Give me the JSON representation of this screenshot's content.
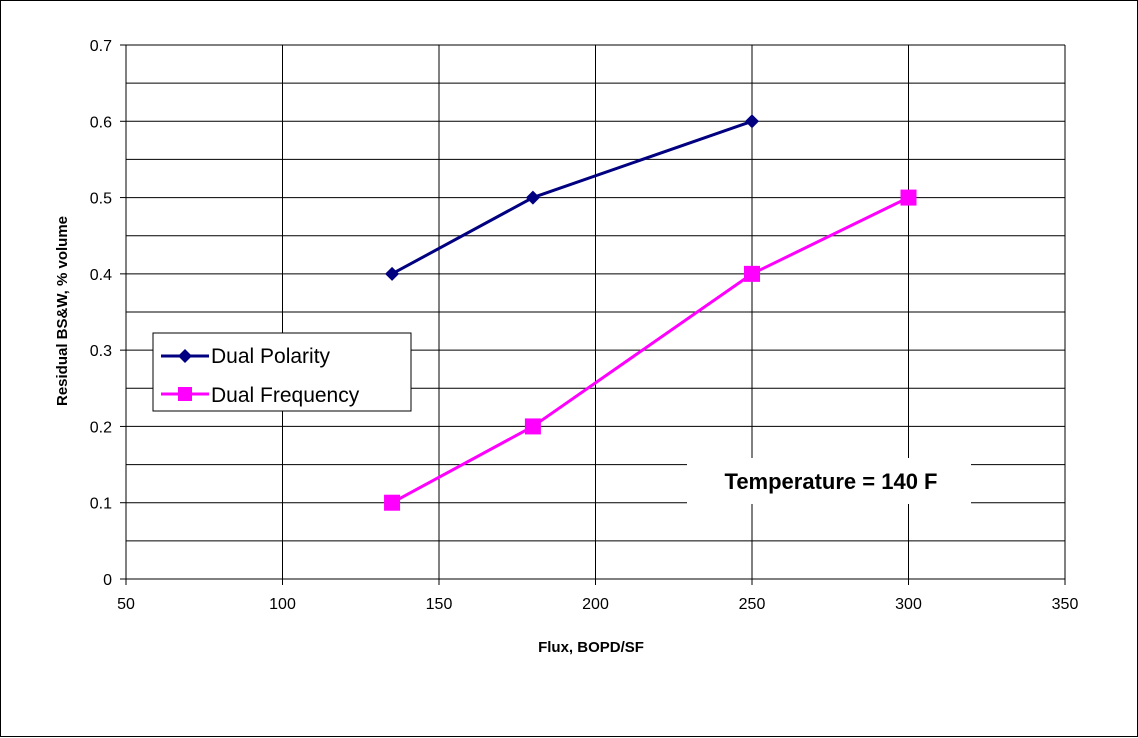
{
  "chart_data": {
    "type": "line",
    "title": "",
    "xlabel": "Flux, BOPD/SF",
    "ylabel": "Residual BS&W, % volume",
    "xlim": [
      50,
      350
    ],
    "ylim": [
      0,
      0.7
    ],
    "x_ticks": [
      "50",
      "100",
      "150",
      "200",
      "250",
      "300",
      "350"
    ],
    "y_ticks": [
      "0",
      "0.1",
      "0.2",
      "0.3",
      "0.4",
      "0.5",
      "0.6",
      "0.7"
    ],
    "grid": true,
    "legend_position": "left",
    "series": [
      {
        "name": "Dual Polarity",
        "marker": "diamond",
        "color": "#000080",
        "points": [
          [
            135,
            0.4
          ],
          [
            180,
            0.5
          ],
          [
            250,
            0.6
          ]
        ]
      },
      {
        "name": "Dual Frequency",
        "marker": "square",
        "color": "#FF00FF",
        "points": [
          [
            135,
            0.1
          ],
          [
            180,
            0.2
          ],
          [
            250,
            0.4
          ],
          [
            300,
            0.5
          ]
        ]
      }
    ],
    "annotation": "Temperature = 140 F"
  }
}
